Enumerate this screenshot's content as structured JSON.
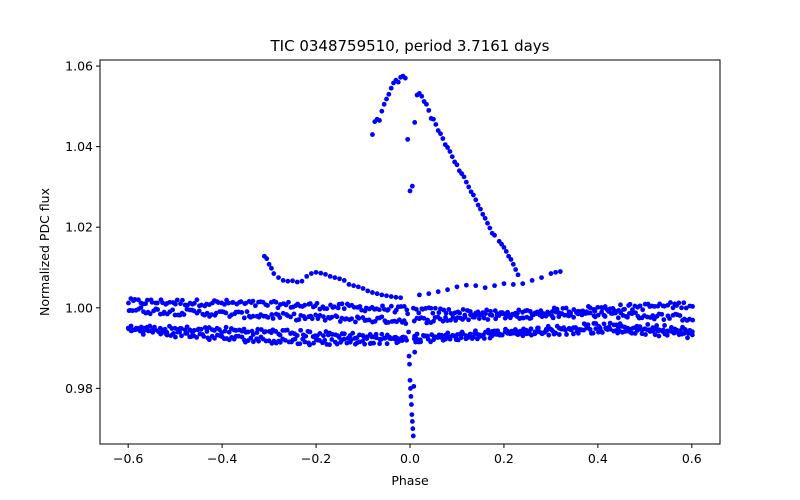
{
  "chart_data": {
    "type": "scatter",
    "title": "TIC 0348759510, period 3.7161 days",
    "xlabel": "Phase",
    "ylabel": "Normalized PDC flux",
    "xlim": [
      -0.66,
      0.66
    ],
    "ylim": [
      0.9662,
      1.0615
    ],
    "xticks": [
      -0.6,
      -0.4,
      -0.2,
      0.0,
      0.2,
      0.4,
      0.6
    ],
    "xtick_labels": [
      "−0.6",
      "−0.4",
      "−0.2",
      "0.0",
      "0.2",
      "0.4",
      "0.6"
    ],
    "yticks": [
      0.98,
      1.0,
      1.02,
      1.04,
      1.06
    ],
    "ytick_labels": [
      "0.98",
      "1.00",
      "1.02",
      "1.04",
      "1.06"
    ],
    "marker_color": "#0000ff",
    "grid": false,
    "bands": [
      {
        "name": "band-a",
        "x0": -0.6,
        "y0": 1.0015,
        "x1": -0.4,
        "y1": 1.0012,
        "x2": -0.2,
        "y2": 1.0005,
        "x3": 0.0,
        "y3": 0.9995,
        "x4": 0.2,
        "y4": 0.9985,
        "x5": 0.4,
        "y5": 0.9998,
        "x6": 0.6,
        "y6": 1.0008
      },
      {
        "name": "band-b",
        "x0": -0.6,
        "y0": 0.9995,
        "x1": -0.4,
        "y1": 0.9985,
        "x2": -0.2,
        "y2": 0.9975,
        "x3": 0.0,
        "y3": 0.9968,
        "x4": 0.2,
        "y4": 0.998,
        "x5": 0.4,
        "y5": 0.9985,
        "x6": 0.6,
        "y6": 0.9975
      },
      {
        "name": "band-c",
        "x0": -0.6,
        "y0": 0.9948,
        "x1": -0.4,
        "y1": 0.9945,
        "x2": -0.2,
        "y2": 0.9935,
        "x3": 0.0,
        "y3": 0.9925,
        "x4": 0.2,
        "y4": 0.994,
        "x5": 0.4,
        "y5": 0.9955,
        "x6": 0.6,
        "y6": 0.9948
      },
      {
        "name": "band-d",
        "x0": -0.6,
        "y0": 0.9945,
        "x1": -0.4,
        "y1": 0.9925,
        "x2": -0.2,
        "y2": 0.9915,
        "x3": 0.0,
        "y3": 0.992,
        "x4": 0.2,
        "y4": 0.9935,
        "x5": 0.4,
        "y5": 0.9945,
        "x6": 0.6,
        "y6": 0.9932
      }
    ],
    "upper_arc": [
      [
        -0.31,
        1.0128
      ],
      [
        -0.305,
        1.0122
      ],
      [
        -0.3,
        1.0108
      ],
      [
        -0.295,
        1.0098
      ],
      [
        -0.29,
        1.0085
      ],
      [
        -0.28,
        1.0075
      ],
      [
        -0.27,
        1.0068
      ],
      [
        -0.26,
        1.0066
      ],
      [
        -0.25,
        1.0067
      ],
      [
        -0.24,
        1.0064
      ],
      [
        -0.23,
        1.0066
      ],
      [
        -0.22,
        1.0078
      ],
      [
        -0.21,
        1.0085
      ],
      [
        -0.2,
        1.0088
      ],
      [
        -0.19,
        1.0086
      ],
      [
        -0.18,
        1.0083
      ],
      [
        -0.17,
        1.0078
      ],
      [
        -0.16,
        1.0075
      ],
      [
        -0.15,
        1.0072
      ],
      [
        -0.14,
        1.0068
      ],
      [
        -0.13,
        1.0058
      ],
      [
        -0.12,
        1.0055
      ],
      [
        -0.11,
        1.0052
      ],
      [
        -0.1,
        1.0048
      ],
      [
        -0.09,
        1.0042
      ],
      [
        -0.08,
        1.0038
      ],
      [
        -0.07,
        1.0035
      ],
      [
        -0.06,
        1.0032
      ],
      [
        -0.05,
        1.003
      ],
      [
        -0.04,
        1.0028
      ],
      [
        -0.03,
        1.0026
      ],
      [
        -0.02,
        1.0025
      ],
      [
        0.02,
        1.0032
      ],
      [
        0.04,
        1.0035
      ],
      [
        0.06,
        1.004
      ],
      [
        0.08,
        1.0045
      ],
      [
        0.1,
        1.0052
      ],
      [
        0.12,
        1.0056
      ],
      [
        0.14,
        1.0055
      ],
      [
        0.16,
        1.005
      ],
      [
        0.18,
        1.0055
      ],
      [
        0.2,
        1.006
      ],
      [
        0.22,
        1.0058
      ],
      [
        0.24,
        1.006
      ],
      [
        0.26,
        1.0068
      ],
      [
        0.28,
        1.0075
      ],
      [
        0.3,
        1.0085
      ],
      [
        0.31,
        1.0088
      ],
      [
        0.32,
        1.009
      ]
    ],
    "flare": [
      [
        -0.08,
        1.043
      ],
      [
        -0.075,
        1.0462
      ],
      [
        -0.07,
        1.0468
      ],
      [
        -0.065,
        1.0465
      ],
      [
        -0.06,
        1.0488
      ],
      [
        -0.055,
        1.0505
      ],
      [
        -0.05,
        1.0518
      ],
      [
        -0.045,
        1.053
      ],
      [
        -0.04,
        1.0545
      ],
      [
        -0.035,
        1.0558
      ],
      [
        -0.03,
        1.0565
      ],
      [
        -0.025,
        1.056
      ],
      [
        -0.02,
        1.0572
      ],
      [
        -0.015,
        1.0575
      ],
      [
        -0.01,
        1.057
      ],
      [
        -0.005,
        1.0418
      ],
      [
        0.0,
        1.029
      ],
      [
        0.005,
        1.0302
      ],
      [
        0.01,
        1.046
      ],
      [
        0.015,
        1.0528
      ],
      [
        0.02,
        1.0532
      ],
      [
        0.025,
        1.0525
      ],
      [
        0.03,
        1.0512
      ],
      [
        0.035,
        1.0505
      ],
      [
        0.04,
        1.049
      ],
      [
        0.045,
        1.047
      ],
      [
        0.05,
        1.0468
      ],
      [
        0.055,
        1.0455
      ],
      [
        0.06,
        1.044
      ],
      [
        0.065,
        1.0432
      ],
      [
        0.07,
        1.042
      ],
      [
        0.075,
        1.0405
      ],
      [
        0.08,
        1.0398
      ],
      [
        0.085,
        1.0388
      ],
      [
        0.09,
        1.0375
      ],
      [
        0.095,
        1.0362
      ],
      [
        0.1,
        1.0355
      ],
      [
        0.105,
        1.034
      ],
      [
        0.11,
        1.0333
      ],
      [
        0.115,
        1.0325
      ],
      [
        0.12,
        1.0312
      ],
      [
        0.125,
        1.03
      ],
      [
        0.13,
        1.0288
      ],
      [
        0.135,
        1.028
      ],
      [
        0.14,
        1.0268
      ],
      [
        0.145,
        1.0255
      ],
      [
        0.15,
        1.0245
      ],
      [
        0.155,
        1.0232
      ],
      [
        0.16,
        1.0222
      ],
      [
        0.165,
        1.021
      ],
      [
        0.17,
        1.0198
      ],
      [
        0.175,
        1.0185
      ],
      [
        0.18,
        1.018
      ],
      [
        0.19,
        1.0165
      ],
      [
        0.195,
        1.0158
      ],
      [
        0.2,
        1.015
      ],
      [
        0.205,
        1.014
      ],
      [
        0.21,
        1.0128
      ],
      [
        0.215,
        1.012
      ],
      [
        0.22,
        1.0108
      ],
      [
        0.225,
        1.0095
      ],
      [
        0.23,
        1.0082
      ]
    ],
    "dip": [
      [
        -0.005,
        0.9985
      ],
      [
        -0.003,
        0.994
      ],
      [
        -0.002,
        0.988
      ],
      [
        -0.001,
        0.986
      ],
      [
        0.0,
        0.982
      ],
      [
        0.001,
        0.98
      ],
      [
        0.002,
        0.978
      ],
      [
        0.003,
        0.976
      ],
      [
        0.004,
        0.9735
      ],
      [
        0.005,
        0.9718
      ],
      [
        0.006,
        0.97
      ],
      [
        0.007,
        0.9682
      ],
      [
        0.008,
        0.9805
      ],
      [
        0.01,
        0.989
      ],
      [
        0.012,
        0.9915
      ],
      [
        0.015,
        0.9935
      ]
    ]
  }
}
